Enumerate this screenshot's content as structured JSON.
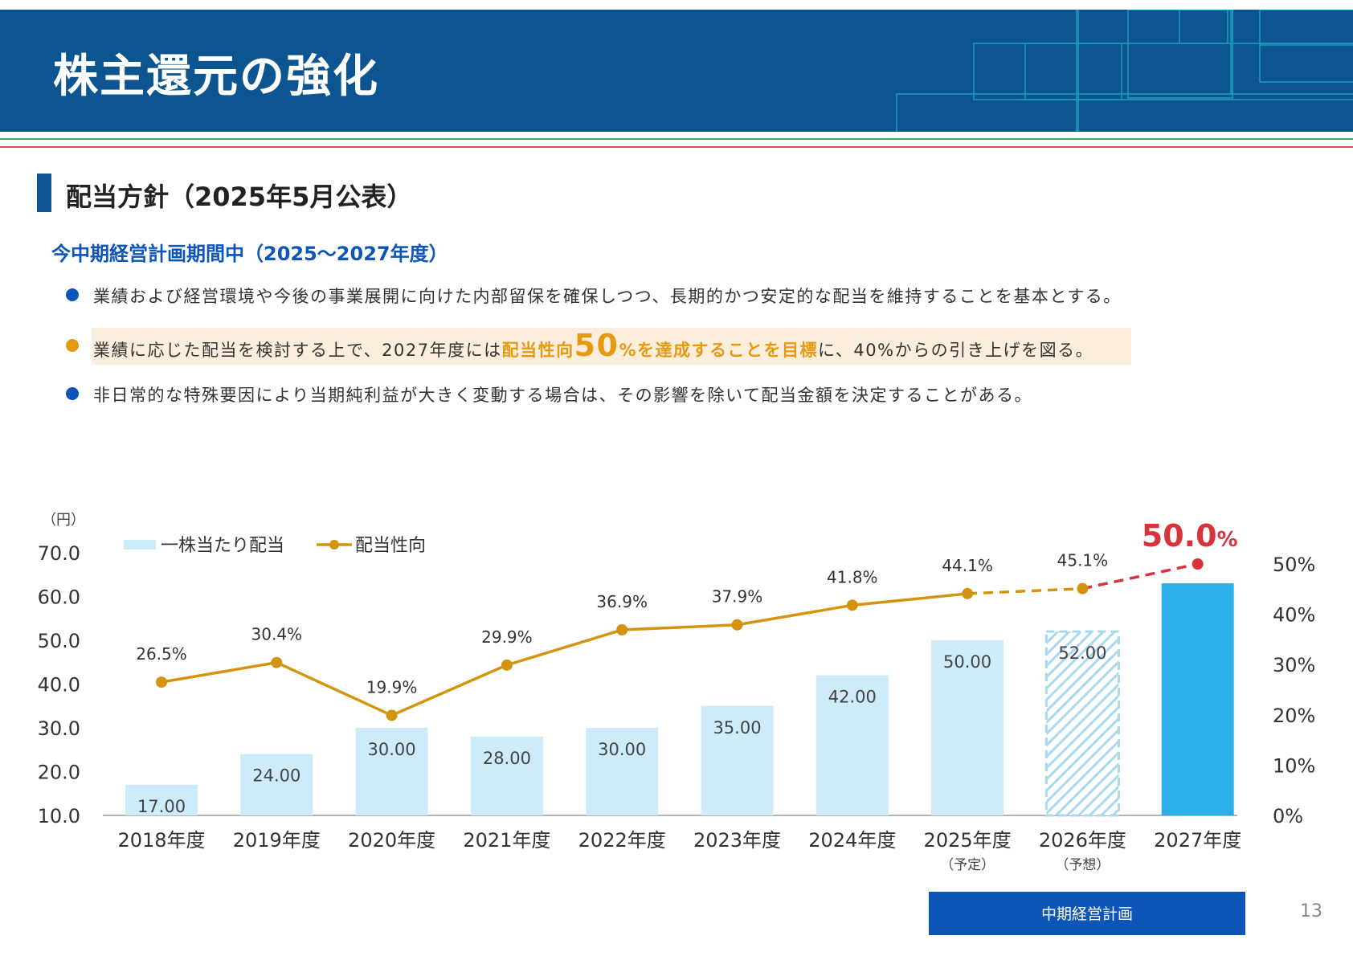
{
  "header": {
    "title": "株主還元の強化"
  },
  "section": {
    "title": "配当方針（2025年5月公表）"
  },
  "subtitle": "今中期経営計画期間中（2025〜2027年度）",
  "bullets": {
    "b1": {
      "text": "業績および経営環境や今後の事業展開に向けた内部留保を確保しつつ、長期的かつ安定的な配当を維持することを基本とする。",
      "color": "#0e55b8"
    },
    "b2": {
      "part1": "業績に応じた配当を検討する上で、2027年度には",
      "hl1": "配当性向",
      "hl_big": "50",
      "hl2": "%を達成することを目標",
      "part2": "に、40%からの引き上げを図る。",
      "color": "#e69a12"
    },
    "b3": {
      "text": "非日常的な特殊要因により当期純利益が大きく変動する場合は、その影響を除いて配当金額を決定することがある。",
      "color": "#0e55b8"
    }
  },
  "chart_data": {
    "type": "bar",
    "categories": [
      "2018年度",
      "2019年度",
      "2020年度",
      "2021年度",
      "2022年度",
      "2023年度",
      "2024年度",
      "2025年度",
      "2026年度",
      "2027年度"
    ],
    "category_notes": [
      "",
      "",
      "",
      "",
      "",
      "",
      "",
      "（予定）",
      "（予想）",
      ""
    ],
    "left_unit": "（円）",
    "left_ticks": [
      "70.0",
      "60.0",
      "50.0",
      "40.0",
      "30.0",
      "20.0",
      "10.0"
    ],
    "ylim_left": [
      10,
      70
    ],
    "right_ticks": [
      "50%",
      "40%",
      "30%",
      "20%",
      "10%",
      "0%"
    ],
    "ylim_right": [
      0,
      50
    ],
    "legend": {
      "bar": "一株当たり配当",
      "line": "配当性向"
    },
    "series": [
      {
        "name": "一株当たり配当",
        "kind": "bar",
        "values": [
          17.0,
          24.0,
          30.0,
          28.0,
          30.0,
          35.0,
          42.0,
          50.0,
          52.0,
          63.0
        ],
        "labels": [
          "17.00",
          "24.00",
          "30.00",
          "28.00",
          "30.00",
          "35.00",
          "42.00",
          "50.00",
          "52.00",
          ""
        ]
      },
      {
        "name": "配当性向",
        "kind": "line",
        "values": [
          26.5,
          30.4,
          19.9,
          29.9,
          36.9,
          37.9,
          41.8,
          44.1,
          45.1,
          50.0
        ],
        "labels": [
          "26.5%",
          "30.4%",
          "19.9%",
          "29.9%",
          "36.9%",
          "37.9%",
          "41.8%",
          "44.1%",
          "45.1%",
          ""
        ],
        "target_label_num": "50.0",
        "target_label_pct": "%"
      }
    ],
    "bracket_label": "中期経営計画",
    "colors": {
      "bar": "#cdebf8",
      "bar_target": "#2eaee8",
      "line": "#d4940f",
      "target": "#d8323c",
      "hatch": "#a8d9f1",
      "bracket": "#0e55b8",
      "axis": "#999999"
    }
  },
  "page_number": "13"
}
